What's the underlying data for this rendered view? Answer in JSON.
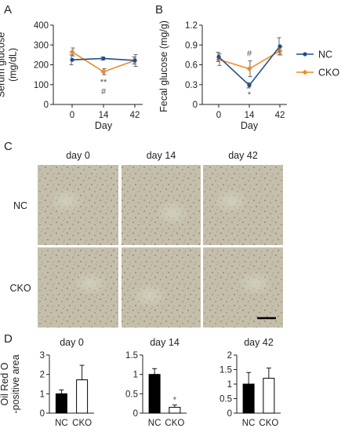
{
  "panels": {
    "a": "A",
    "b": "B",
    "c": "C",
    "d": "D"
  },
  "colors": {
    "nc": "#1f4e8c",
    "cko": "#ee8a2a",
    "axis": "#222222",
    "error": "#555555",
    "tissue": "#c2bda9"
  },
  "chart_data": [
    {
      "panel": "A",
      "type": "line",
      "ylabel": [
        "Serum glucose",
        "(mg/dL)"
      ],
      "xlabel": "Day",
      "x": [
        0,
        14,
        42
      ],
      "ylim": [
        0,
        400
      ],
      "yticks": [
        0,
        100,
        200,
        300,
        400
      ],
      "series": [
        {
          "name": "NC",
          "values": [
            225,
            232,
            222
          ],
          "errors": [
            25,
            8,
            18
          ]
        },
        {
          "name": "CKO",
          "values": [
            265,
            165,
            222
          ],
          "errors": [
            20,
            15,
            30
          ]
        }
      ],
      "annotations": [
        {
          "x": 14,
          "lines": [
            "**",
            "#"
          ]
        }
      ]
    },
    {
      "panel": "B",
      "type": "line",
      "ylabel": [
        "Fecal glucose (mg/g)"
      ],
      "xlabel": "Day",
      "x": [
        0,
        14,
        42
      ],
      "ylim": [
        0,
        1.2
      ],
      "yticks": [
        0,
        0.3,
        0.6,
        0.9,
        1.2
      ],
      "series": [
        {
          "name": "NC",
          "values": [
            0.72,
            0.29,
            0.88
          ],
          "errors": [
            0.07,
            0.04,
            0.13
          ]
        },
        {
          "name": "CKO",
          "values": [
            0.68,
            0.54,
            0.81
          ],
          "errors": [
            0.09,
            0.12,
            0.06
          ]
        }
      ],
      "annotations": [
        {
          "x": 14,
          "lines": [
            "#"
          ]
        },
        {
          "x": 14,
          "lines": [
            "*"
          ],
          "below": true
        }
      ]
    },
    {
      "panel": "D",
      "type": "bar",
      "title": "day 0",
      "ylabel": [
        "Oil Red O",
        "-positive area"
      ],
      "categories": [
        "NC",
        "CKO"
      ],
      "values": [
        1.0,
        1.72
      ],
      "errors": [
        0.2,
        0.75
      ],
      "ylim": [
        0,
        3
      ],
      "yticks": [
        0,
        1,
        2,
        3
      ]
    },
    {
      "panel": "D",
      "type": "bar",
      "title": "day 14",
      "categories": [
        "NC",
        "CKO"
      ],
      "values": [
        1.0,
        0.15
      ],
      "errors": [
        0.15,
        0.06
      ],
      "ylim": [
        0,
        1.5
      ],
      "yticks": [
        0,
        0.5,
        1,
        1.5
      ],
      "annotations": [
        {
          "category": "CKO",
          "text": "*"
        }
      ]
    },
    {
      "panel": "D",
      "type": "bar",
      "title": "day 42",
      "categories": [
        "NC",
        "CKO"
      ],
      "values": [
        1.0,
        1.2
      ],
      "errors": [
        0.4,
        0.35
      ],
      "ylim": [
        0,
        2
      ],
      "yticks": [
        0,
        0.5,
        1,
        1.5,
        2
      ]
    }
  ],
  "legend": [
    {
      "name": "NC",
      "marker": "circle"
    },
    {
      "name": "CKO",
      "marker": "diamond"
    }
  ],
  "images": {
    "columns": [
      "day 0",
      "day 14",
      "day 42"
    ],
    "rows": [
      "NC",
      "CKO"
    ],
    "has_scale_bar": true
  }
}
